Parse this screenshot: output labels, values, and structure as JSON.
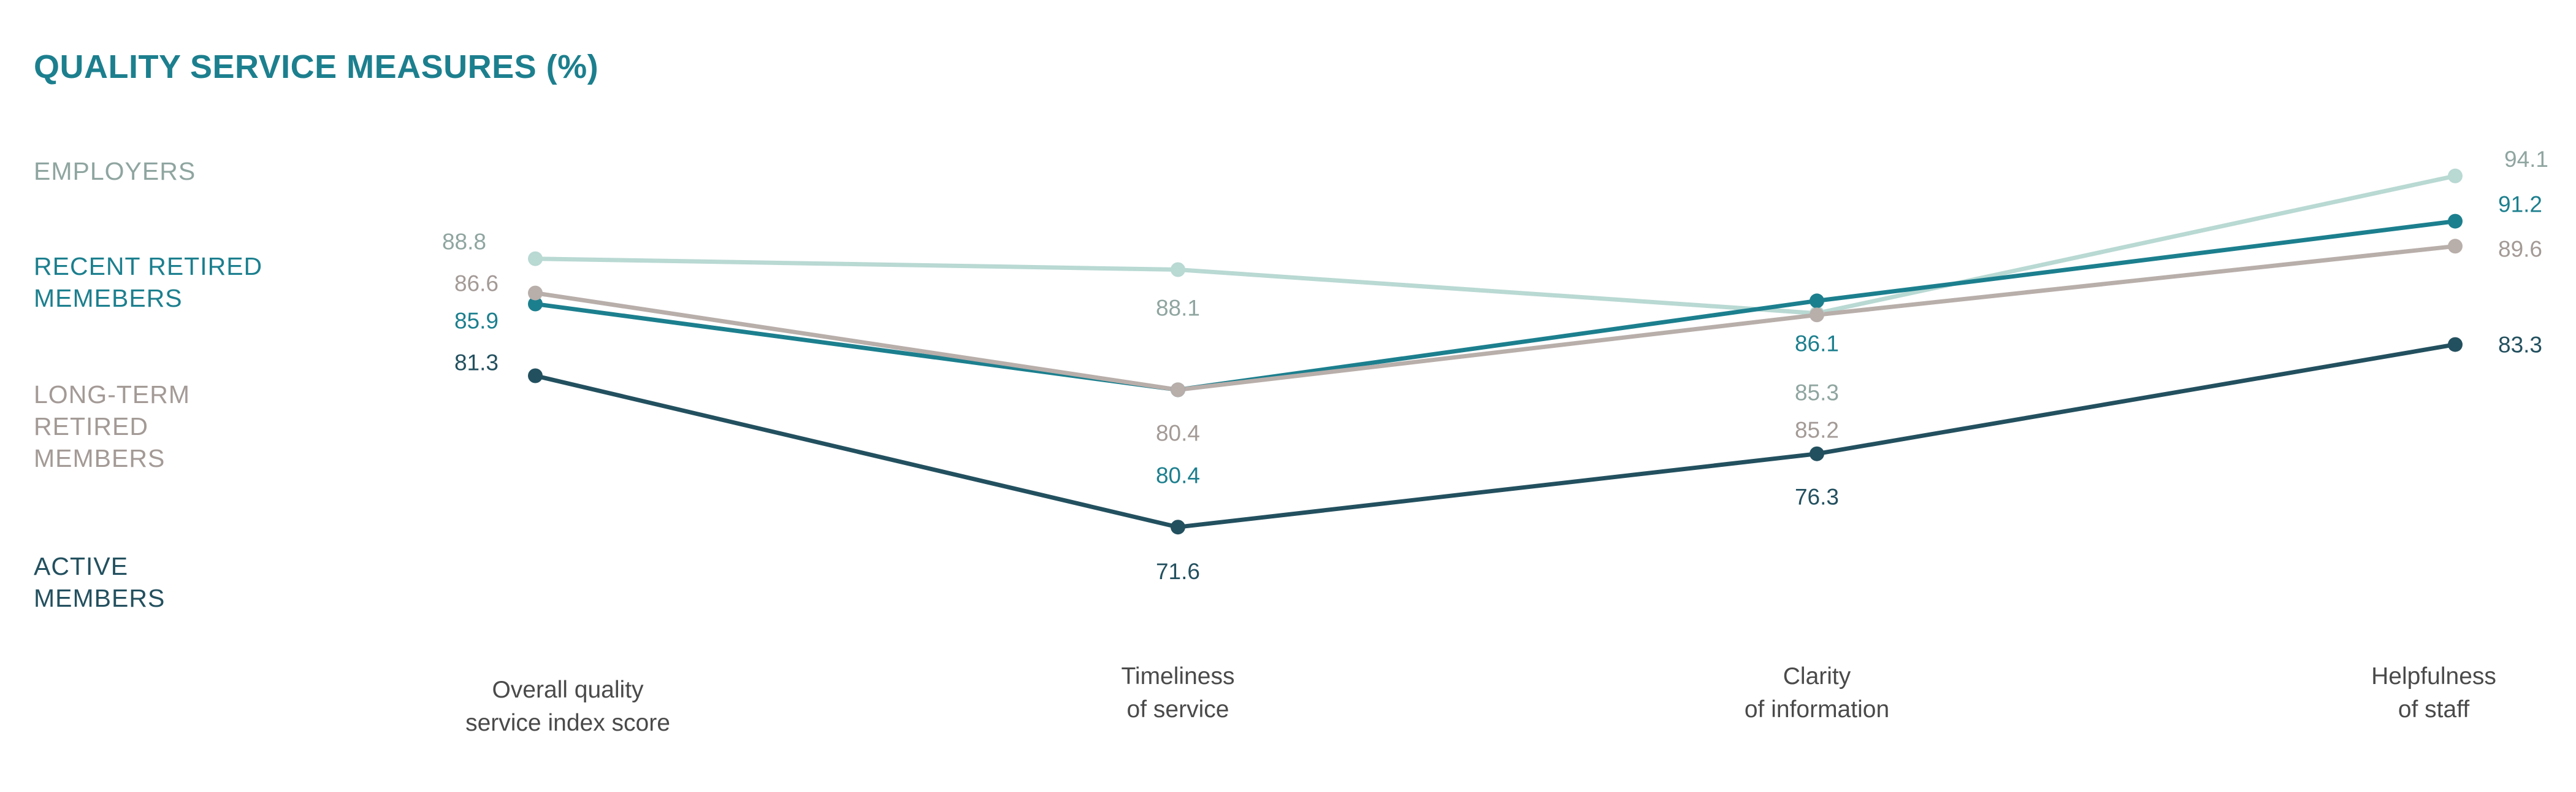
{
  "chart_data": {
    "type": "line",
    "title": "QUALITY SERVICE MEASURES (%)",
    "categories": [
      [
        "Overall quality",
        "service index score"
      ],
      [
        "Timeliness",
        "of service"
      ],
      [
        "Clarity",
        "of information"
      ],
      [
        "Helpfulness",
        "of staff"
      ]
    ],
    "series": [
      {
        "name": "EMPLOYERS",
        "legend_lines": [
          "EMPLOYERS"
        ],
        "color": "#b9d9d3",
        "label_color": "#8fa5a0",
        "values": [
          88.8,
          88.1,
          85.3,
          94.1
        ]
      },
      {
        "name": "RECENT RETIRED MEMEBERS",
        "legend_lines": [
          "RECENT RETIRED",
          "MEMEBERS"
        ],
        "color": "#1c7f8e",
        "label_color": "#1c7f8e",
        "values": [
          85.9,
          80.4,
          86.1,
          91.2
        ]
      },
      {
        "name": "LONG-TERM RETIRED MEMBERS",
        "legend_lines": [
          "LONG-TERM",
          "RETIRED",
          "MEMBERS"
        ],
        "color": "#b8aeaa",
        "label_color": "#a39a96",
        "values": [
          86.6,
          80.4,
          85.2,
          89.6
        ]
      },
      {
        "name": "ACTIVE MEMBERS",
        "legend_lines": [
          "ACTIVE",
          "MEMBERS"
        ],
        "color": "#23505f",
        "label_color": "#23505f",
        "values": [
          81.3,
          71.6,
          76.3,
          83.3
        ]
      }
    ],
    "title_color": "#1c7f8e",
    "legend": "left",
    "grid": false,
    "ylim": [
      70,
      95
    ]
  }
}
